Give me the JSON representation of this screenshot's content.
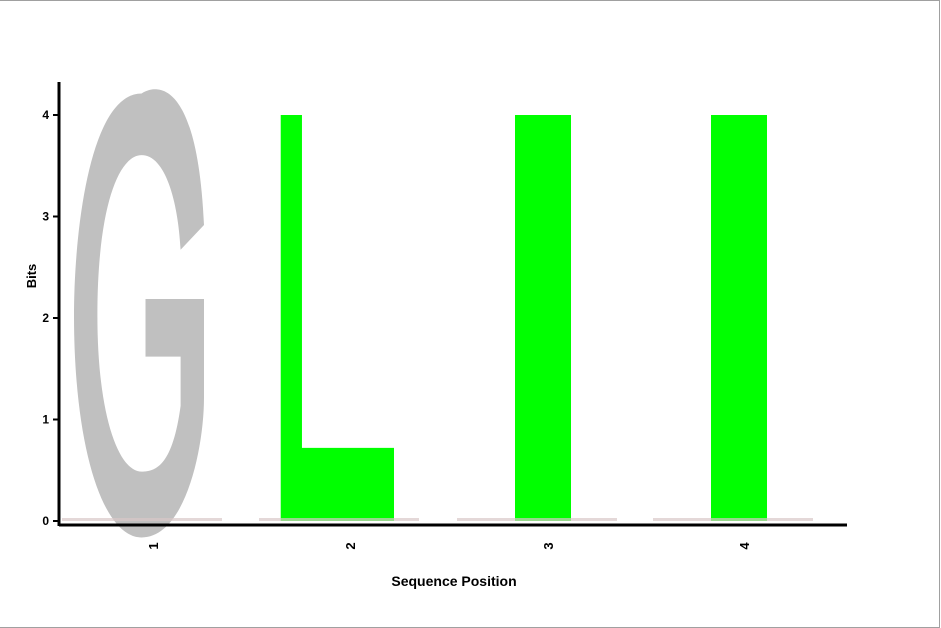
{
  "chart_data": {
    "type": "sequence-logo",
    "xlabel": "Sequence Position",
    "ylabel": "Bits",
    "ylim": [
      0,
      4
    ],
    "yticks": [
      0,
      1,
      2,
      3,
      4
    ],
    "positions": [
      "1",
      "2",
      "3",
      "4"
    ],
    "letters": [
      {
        "position": "1",
        "letter": "G",
        "bits": 4.05,
        "color": "#c0c0c0"
      },
      {
        "position": "2",
        "letter": "L",
        "bits": 4.0,
        "color": "#00ff00"
      },
      {
        "position": "3",
        "letter": "I",
        "bits": 4.0,
        "color": "#00ff00"
      },
      {
        "position": "4",
        "letter": "I",
        "bits": 4.0,
        "color": "#00ff00"
      }
    ],
    "grid": false,
    "legend": "none"
  }
}
